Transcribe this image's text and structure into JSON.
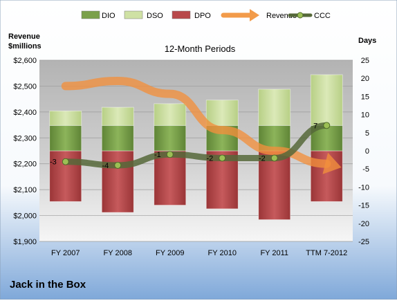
{
  "chart_data": {
    "type": "bar",
    "title": "12-Month Periods",
    "company": "Jack in the Box",
    "left_axis": {
      "label_line1": "Revenue",
      "label_line2": "$millions",
      "ylim": [
        1900,
        2600
      ],
      "ticks": [
        1900,
        2000,
        2100,
        2200,
        2300,
        2400,
        2500,
        2600
      ],
      "tick_labels": [
        "$1,900",
        "$2,000",
        "$2,100",
        "$2,200",
        "$2,300",
        "$2,400",
        "$2,500",
        "$2,600"
      ]
    },
    "right_axis": {
      "label": "Days",
      "ylim": [
        -25,
        25
      ],
      "ticks": [
        -25,
        -20,
        -15,
        -10,
        -5,
        0,
        5,
        10,
        15,
        20,
        25
      ]
    },
    "categories": [
      "FY 2007",
      "FY 2008",
      "FY 2009",
      "FY 2010",
      "FY 2011",
      "TTM 7-2012"
    ],
    "legend": [
      {
        "key": "dio",
        "label": "DIO",
        "kind": "bar",
        "color": "#7aa04a"
      },
      {
        "key": "dso",
        "label": "DSO",
        "kind": "bar",
        "color": "#cfe1a4"
      },
      {
        "key": "dpo",
        "label": "DPO",
        "kind": "bar",
        "color": "#b8494b"
      },
      {
        "key": "revenue",
        "label": "Revenue",
        "kind": "arrow",
        "color": "#f29b4a"
      },
      {
        "key": "ccc",
        "label": "CCC",
        "kind": "line",
        "color": "#56693a"
      }
    ],
    "stacks": {
      "dpo_range": [
        [
          -14,
          0
        ],
        [
          -17,
          0
        ],
        [
          -15,
          0
        ],
        [
          -16,
          0
        ],
        [
          -19,
          0
        ],
        [
          -14,
          0
        ]
      ],
      "dio_range": [
        [
          0,
          7
        ],
        [
          0,
          7
        ],
        [
          0,
          7
        ],
        [
          0,
          7
        ],
        [
          0,
          7
        ],
        [
          0,
          7
        ]
      ],
      "dso_range": [
        [
          7,
          11
        ],
        [
          7,
          12
        ],
        [
          7,
          13
        ],
        [
          7,
          14
        ],
        [
          7,
          17
        ],
        [
          7,
          21
        ]
      ]
    },
    "series": [
      {
        "name": "CCC",
        "values": [
          -3,
          -4,
          -1,
          -2,
          -2,
          7
        ],
        "labels": [
          "-3",
          "-4",
          "-1",
          "-2",
          "-2",
          "7"
        ]
      },
      {
        "name": "Revenue",
        "values": [
          2500,
          2520,
          2470,
          2330,
          2250,
          2200
        ]
      }
    ]
  }
}
